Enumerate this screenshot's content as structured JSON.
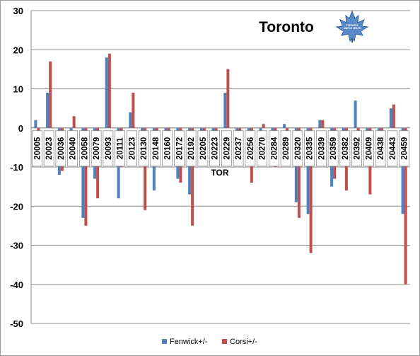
{
  "chart_data": {
    "type": "bar",
    "title": "Toronto",
    "xlabel": "TOR",
    "ylabel": "",
    "ylim": [
      -50,
      30
    ],
    "yticks": [
      30,
      20,
      10,
      0,
      -10,
      -20,
      -30,
      -40,
      -50
    ],
    "grid": true,
    "legend_position": "bottom",
    "categories": [
      "20005",
      "20023",
      "20036",
      "20040",
      "20058",
      "20079",
      "20093",
      "20111",
      "20123",
      "20130",
      "20148",
      "20160",
      "20172",
      "20192",
      "20205",
      "20223",
      "20229",
      "20237",
      "20256",
      "20270",
      "20284",
      "20289",
      "20320",
      "20335",
      "20339",
      "20359",
      "20382",
      "20392",
      "20409",
      "20438",
      "20443",
      "20459"
    ],
    "series": [
      {
        "name": "Fenwick+/-",
        "color": "#4f81bd",
        "values": [
          2,
          9,
          -12,
          -2,
          -23,
          -13,
          18,
          -18,
          4,
          -9,
          -16,
          -5,
          -13,
          -17,
          -7,
          -6,
          9,
          -1,
          -8,
          -2,
          -6,
          1,
          -19,
          -22,
          2,
          -15,
          -8,
          7,
          -9,
          -1,
          5,
          -22
        ]
      },
      {
        "name": "Corsi+/-",
        "color": "#c0504d",
        "values": [
          -4,
          17,
          -11,
          3,
          -25,
          -18,
          19,
          -10,
          9,
          -21,
          -9,
          -7,
          -14,
          -25,
          -9,
          -9,
          15,
          -4,
          -14,
          1,
          -10,
          -1,
          -23,
          -32,
          2,
          -13,
          -16,
          -8,
          -17,
          -9,
          6,
          -40
        ]
      }
    ]
  },
  "logo": {
    "name": "maple-leaf-logo",
    "text": "TORONTO MAPLE LEAFS"
  }
}
